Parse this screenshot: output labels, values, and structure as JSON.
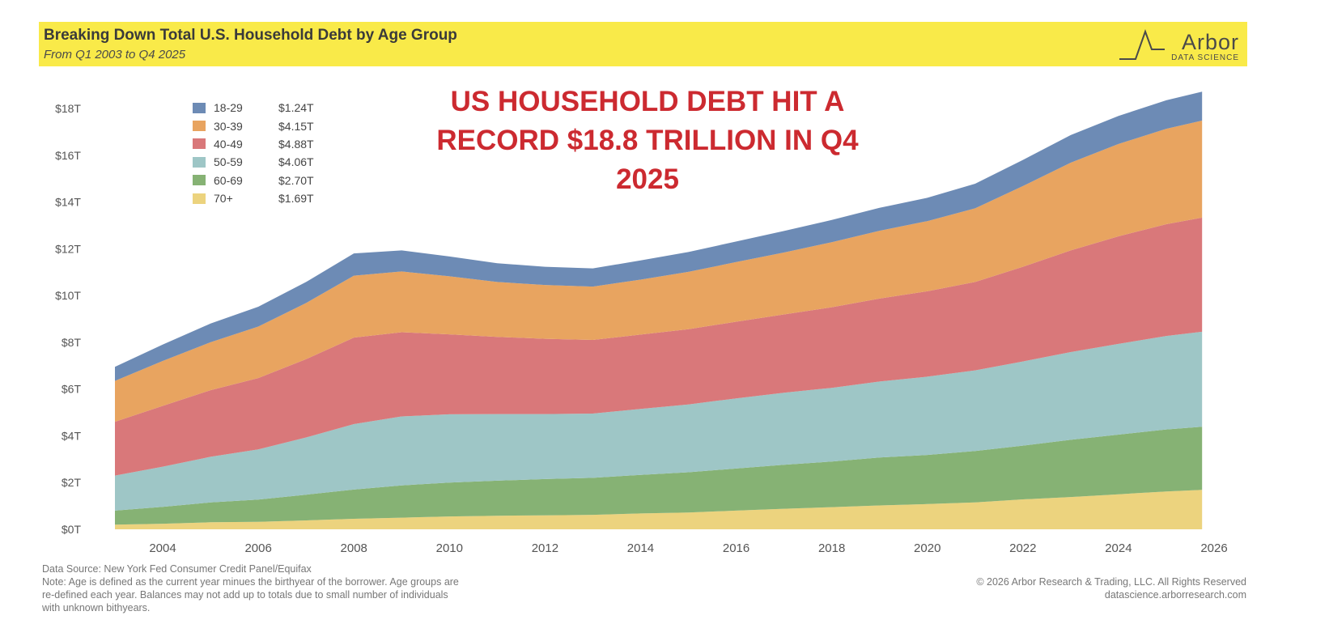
{
  "header": {
    "title": "Breaking Down Total U.S. Household Debt by Age Group",
    "subtitle": "From Q1 2003 to Q4 2025",
    "logo_word": "Arbor",
    "logo_sub": "DATA SCIENCE"
  },
  "headline": {
    "line1": "US HOUSEHOLD DEBT HIT A",
    "line2": "RECORD $18.8 TRILLION IN Q4",
    "line3": "2025"
  },
  "legend": [
    {
      "name": "18-29",
      "value": "$1.24T",
      "color": "#6d8bb5"
    },
    {
      "name": "30-39",
      "value": "$4.15T",
      "color": "#e8a460"
    },
    {
      "name": "40-49",
      "value": "$4.88T",
      "color": "#d9787a"
    },
    {
      "name": "50-59",
      "value": "$4.06T",
      "color": "#9ec6c6"
    },
    {
      "name": "60-69",
      "value": "$2.70T",
      "color": "#86b274"
    },
    {
      "name": "70+",
      "value": "$1.69T",
      "color": "#ecd37e"
    }
  ],
  "chart_data": {
    "type": "area",
    "stacked": true,
    "title": "Breaking Down Total U.S. Household Debt by Age Group",
    "subtitle": "From Q1 2003 to Q4 2025",
    "xlabel": "",
    "ylabel": "",
    "xlim": [
      2003,
      2026
    ],
    "ylim": [
      0,
      18
    ],
    "x_ticks": [
      2004,
      2006,
      2008,
      2010,
      2012,
      2014,
      2016,
      2018,
      2020,
      2022,
      2024,
      2026
    ],
    "y_ticks": [
      0,
      2,
      4,
      6,
      8,
      10,
      12,
      14,
      16,
      18
    ],
    "y_tick_labels": [
      "$0T",
      "$2T",
      "$4T",
      "$6T",
      "$8T",
      "$10T",
      "$12T",
      "$14T",
      "$16T",
      "$18T"
    ],
    "x": [
      2003,
      2004,
      2005,
      2006,
      2007,
      2008,
      2009,
      2010,
      2011,
      2012,
      2013,
      2014,
      2015,
      2016,
      2017,
      2018,
      2019,
      2020,
      2021,
      2022,
      2023,
      2024,
      2025,
      2025.75
    ],
    "series": [
      {
        "name": "70+",
        "color": "#ecd37e",
        "values": [
          0.2,
          0.24,
          0.3,
          0.32,
          0.38,
          0.45,
          0.5,
          0.55,
          0.58,
          0.6,
          0.62,
          0.68,
          0.72,
          0.8,
          0.88,
          0.95,
          1.02,
          1.08,
          1.15,
          1.28,
          1.38,
          1.5,
          1.62,
          1.69
        ]
      },
      {
        "name": "60-69",
        "color": "#86b274",
        "values": [
          0.6,
          0.72,
          0.85,
          0.95,
          1.1,
          1.25,
          1.38,
          1.45,
          1.5,
          1.55,
          1.58,
          1.65,
          1.72,
          1.8,
          1.88,
          1.95,
          2.05,
          2.1,
          2.2,
          2.3,
          2.45,
          2.55,
          2.65,
          2.7
        ]
      },
      {
        "name": "50-59",
        "color": "#9ec6c6",
        "values": [
          1.5,
          1.72,
          1.95,
          2.15,
          2.45,
          2.8,
          2.95,
          2.92,
          2.85,
          2.78,
          2.75,
          2.82,
          2.9,
          3.0,
          3.08,
          3.15,
          3.25,
          3.35,
          3.45,
          3.6,
          3.75,
          3.88,
          4.0,
          4.06
        ]
      },
      {
        "name": "40-49",
        "color": "#d9787a",
        "values": [
          2.3,
          2.6,
          2.85,
          3.05,
          3.35,
          3.7,
          3.6,
          3.42,
          3.3,
          3.22,
          3.15,
          3.18,
          3.22,
          3.28,
          3.35,
          3.45,
          3.55,
          3.65,
          3.78,
          4.05,
          4.35,
          4.6,
          4.78,
          4.88
        ]
      },
      {
        "name": "30-39",
        "color": "#e8a460",
        "values": [
          1.75,
          1.92,
          2.05,
          2.2,
          2.4,
          2.65,
          2.6,
          2.48,
          2.35,
          2.3,
          2.28,
          2.35,
          2.45,
          2.55,
          2.65,
          2.78,
          2.9,
          3.0,
          3.15,
          3.45,
          3.75,
          3.95,
          4.08,
          4.15
        ]
      },
      {
        "name": "18-29",
        "color": "#6d8bb5",
        "values": [
          0.6,
          0.7,
          0.8,
          0.85,
          0.9,
          0.95,
          0.9,
          0.85,
          0.8,
          0.78,
          0.78,
          0.82,
          0.85,
          0.88,
          0.92,
          0.95,
          0.98,
          1.0,
          1.05,
          1.12,
          1.18,
          1.2,
          1.22,
          1.24
        ]
      }
    ],
    "annotations": [
      "US HOUSEHOLD DEBT HIT A RECORD $18.8 TRILLION IN Q4 2025"
    ]
  },
  "footer": {
    "source": "Data Source: New York Fed Consumer Credit Panel/Equifax",
    "note_line1": "Note: Age is defined as the current year minues the birthyear of the borrower. Age groups are",
    "note_line2": "re-defined each year. Balances may not add up to totals due to small number of individuals",
    "note_line3": "with unknown bithyears.",
    "copyright": "© 2026 Arbor Research & Trading, LLC. All Rights Reserved",
    "website": "datascience.arborresearch.com"
  }
}
